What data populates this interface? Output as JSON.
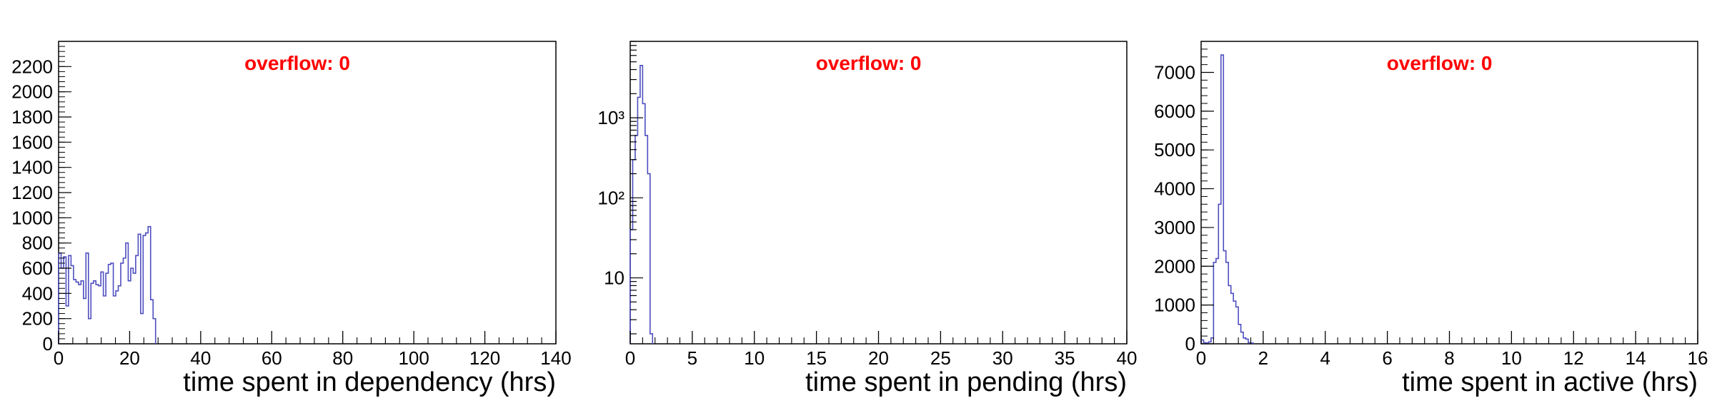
{
  "colors": {
    "line": "#4e4ec0",
    "axis": "#000000",
    "overflow": "#ff0000"
  },
  "chart_data": [
    {
      "type": "histogram",
      "name": "dependency",
      "xlabel": "time spent in dependency (hrs)",
      "ylabel": "",
      "overflow_label": "overflow: 0",
      "xlim": [
        0,
        140
      ],
      "ylim": [
        0,
        2400
      ],
      "yscale": "linear",
      "x_ticks": [
        0,
        20,
        40,
        60,
        80,
        100,
        120,
        140
      ],
      "y_ticks": [
        0,
        200,
        400,
        600,
        800,
        1000,
        1200,
        1400,
        1600,
        1800,
        2000,
        2200
      ],
      "bin_width": 0.7,
      "values": [
        720,
        600,
        690,
        300,
        700,
        620,
        510,
        490,
        470,
        500,
        360,
        720,
        200,
        480,
        500,
        470,
        460,
        570,
        380,
        560,
        630,
        640,
        380,
        420,
        460,
        640,
        680,
        800,
        500,
        600,
        560,
        700,
        870,
        240,
        860,
        880,
        930,
        350,
        200
      ]
    },
    {
      "type": "histogram",
      "name": "pending",
      "xlabel": "time spent in pending (hrs)",
      "ylabel": "",
      "overflow_label": "overflow: 0",
      "xlim": [
        0,
        40
      ],
      "ylim": [
        1.5,
        9000
      ],
      "yscale": "log",
      "x_ticks": [
        0,
        5,
        10,
        15,
        20,
        25,
        30,
        35,
        40
      ],
      "y_ticks": [
        10,
        100,
        1000
      ],
      "y_tick_labels": [
        "10",
        "10²",
        "10³"
      ],
      "bin_width": 0.2,
      "values": [
        40,
        300,
        600,
        1800,
        4500,
        1500,
        600,
        200,
        2
      ]
    },
    {
      "type": "histogram",
      "name": "active",
      "xlabel": "time spent in active (hrs)",
      "ylabel": "",
      "overflow_label": "overflow: 0",
      "xlim": [
        0,
        16
      ],
      "ylim": [
        0,
        7800
      ],
      "yscale": "linear",
      "x_ticks": [
        0,
        2,
        4,
        6,
        8,
        10,
        12,
        14,
        16
      ],
      "y_ticks": [
        0,
        1000,
        2000,
        3000,
        4000,
        5000,
        6000,
        7000
      ],
      "bin_width": 0.08,
      "values": [
        100,
        30,
        20,
        50,
        150,
        2100,
        2200,
        3600,
        7450,
        2400,
        2100,
        1500,
        1300,
        1100,
        950,
        500,
        300,
        150,
        120,
        30,
        20
      ]
    }
  ]
}
